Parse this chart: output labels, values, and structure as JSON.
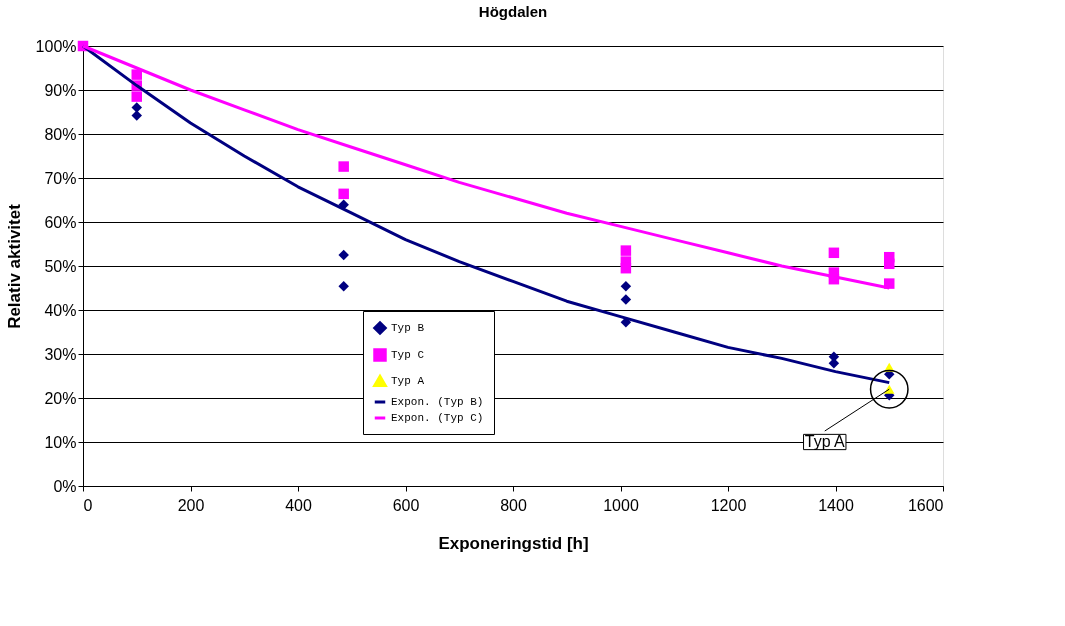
{
  "chart_data": {
    "type": "scatter",
    "title": "Högdalen",
    "xlabel": "Exponeringstid [h]",
    "ylabel": "Relativ aktivitet",
    "xlim": [
      0,
      1600
    ],
    "xticks": [
      0,
      200,
      400,
      600,
      800,
      1000,
      1200,
      1400,
      1600
    ],
    "ylim": [
      0,
      100
    ],
    "yticks": [
      {
        "value": 0,
        "label": "0%"
      },
      {
        "value": 10,
        "label": "10%"
      },
      {
        "value": 20,
        "label": "20%"
      },
      {
        "value": 30,
        "label": "30%"
      },
      {
        "value": 40,
        "label": "40%"
      },
      {
        "value": 50,
        "label": "50%"
      },
      {
        "value": 60,
        "label": "60%"
      },
      {
        "value": 70,
        "label": "70%"
      },
      {
        "value": 80,
        "label": "80%"
      },
      {
        "value": 90,
        "label": "90%"
      },
      {
        "value": 100,
        "label": "100%"
      }
    ],
    "grid": "y",
    "legend": "bottom",
    "series": [
      {
        "name": "Typ B",
        "marker": "diamond",
        "color": "#000080",
        "x": [
          100,
          100,
          485,
          485,
          485,
          1010,
          1010,
          1010,
          1397,
          1397,
          1500,
          1500
        ],
        "values": [
          86,
          84.2,
          63.9,
          52.5,
          45.4,
          45.4,
          42.4,
          37.2,
          29.4,
          27.9,
          25.4,
          20.6
        ]
      },
      {
        "name": "Typ C",
        "marker": "square",
        "color": "#ff00ff",
        "x": [
          0,
          100,
          100,
          100,
          485,
          485,
          1010,
          1010,
          1010,
          1397,
          1397,
          1397,
          1500,
          1500,
          1500
        ],
        "values": [
          100,
          93.5,
          91,
          88.5,
          72.6,
          66.4,
          53.5,
          51,
          49.5,
          53,
          48.5,
          47,
          52,
          50.5,
          46
        ]
      },
      {
        "name": "Typ A",
        "marker": "triangle",
        "color": "#ffff00",
        "x": [
          1500,
          1500
        ],
        "values": [
          27,
          22
        ]
      },
      {
        "name": "Expon. (Typ B)",
        "type": "line",
        "marker": "none",
        "color": "#000080",
        "x": [
          0,
          100,
          200,
          300,
          400,
          500,
          600,
          700,
          800,
          900,
          1000,
          1100,
          1200,
          1300,
          1400,
          1500
        ],
        "values": [
          100,
          91,
          82.5,
          75,
          68,
          62,
          56,
          51,
          46.5,
          42,
          38.5,
          35,
          31.5,
          29,
          26,
          23.5
        ]
      },
      {
        "name": "Expon. (Typ C)",
        "type": "line",
        "marker": "none",
        "color": "#ff00ff",
        "x": [
          0,
          100,
          200,
          300,
          400,
          500,
          600,
          700,
          800,
          900,
          1000,
          1100,
          1200,
          1300,
          1400,
          1500
        ],
        "values": [
          100,
          95,
          90,
          85.5,
          81,
          77,
          73,
          69,
          65.5,
          62,
          59,
          56,
          53,
          50,
          47.5,
          45
        ]
      }
    ],
    "annotations": [
      {
        "text": "Typ A",
        "x": 1500,
        "y": 22
      }
    ]
  }
}
